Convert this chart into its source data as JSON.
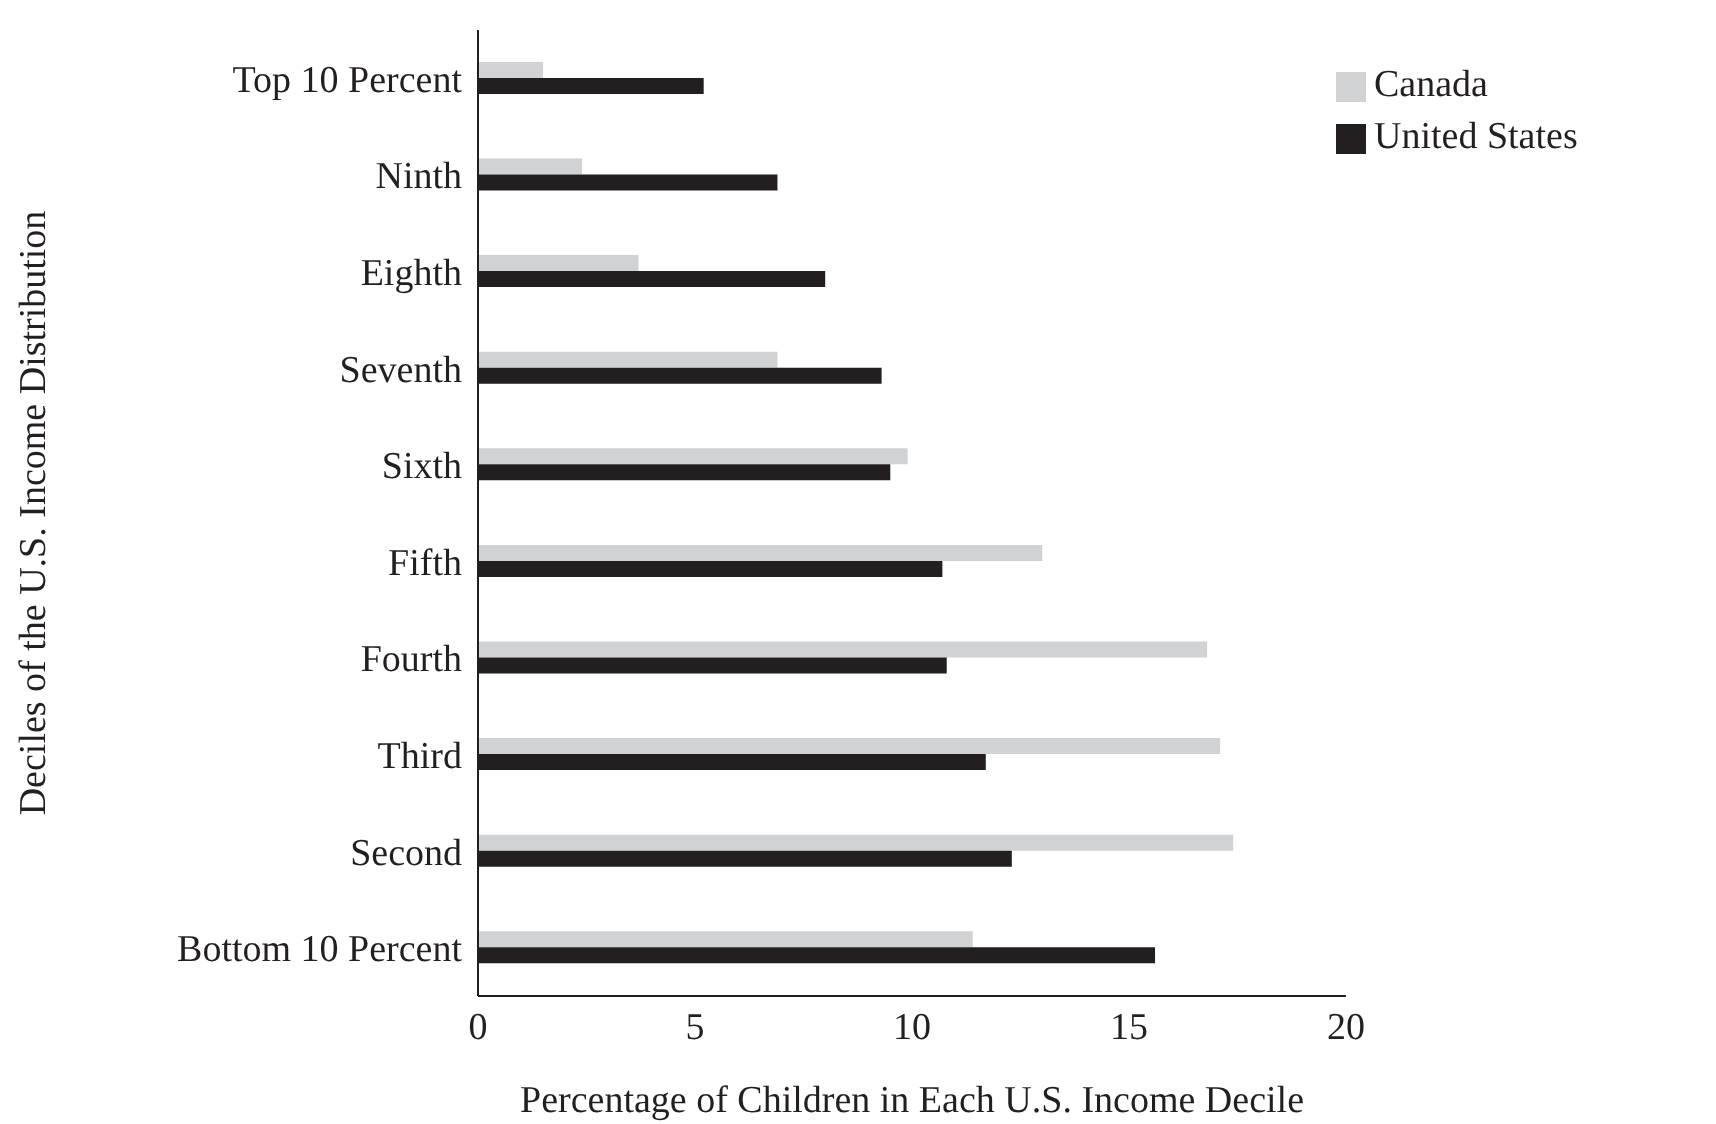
{
  "chart_data": {
    "type": "bar",
    "orientation": "horizontal",
    "xlabel": "Percentage of Children in Each U.S. Income Decile",
    "ylabel": "Deciles of the U.S. Income Distribution",
    "categories": [
      "Top 10 Percent",
      "Ninth",
      "Eighth",
      "Seventh",
      "Sixth",
      "Fifth",
      "Fourth",
      "Third",
      "Second",
      "Bottom 10 Percent"
    ],
    "series": [
      {
        "name": "Canada",
        "color": "#d1d2d4",
        "values": [
          1.5,
          2.4,
          3.7,
          6.9,
          9.9,
          13.0,
          16.8,
          17.1,
          17.4,
          11.4
        ]
      },
      {
        "name": "United States",
        "color": "#231f20",
        "values": [
          5.2,
          6.9,
          8.0,
          9.3,
          9.5,
          10.7,
          10.8,
          11.7,
          12.3,
          15.6
        ]
      }
    ],
    "xlim": [
      0,
      20
    ],
    "xticks": [
      0,
      5,
      10,
      15,
      20
    ],
    "grid": false,
    "legend": "top right"
  }
}
